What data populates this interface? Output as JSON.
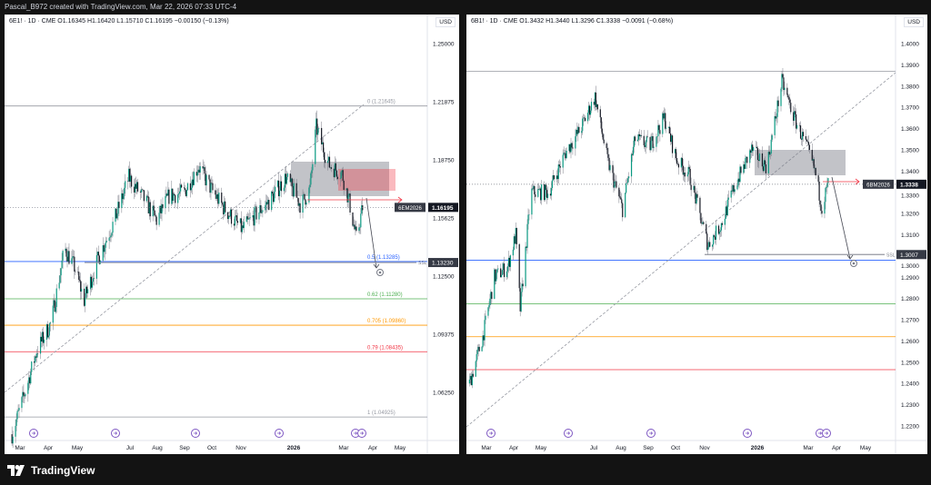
{
  "header": {
    "attribution": "Pascal_B972 created with TradingView.com, Mar 22, 2026 07:33 UTC-4"
  },
  "footer": {
    "brand": "TradingView",
    "logo_icon": "tradingview-logo-icon"
  },
  "colors": {
    "up": "#089981",
    "down": "#131722",
    "wick": "#787b86",
    "fib_05": "#2962ff",
    "fib_062": "#4caf50",
    "fib_0705": "#ff9800",
    "fib_079": "#f23645",
    "box_gray": "#787b86",
    "box_red": "#f23645",
    "event_icon": "#7e57c2"
  },
  "charts": [
    {
      "legend": "6E1! · 1D · CME  O1.16345  H1.16420  L1.15710  C1.16195  −0.00150 (−0.13%)",
      "currency": "USD",
      "price_ticks": [
        "1.25000",
        "1.21875",
        "1.18750",
        "1.15625",
        "1.12500",
        "1.09375",
        "1.06250"
      ],
      "time_ticks": [
        "Mar",
        "Apr",
        "May",
        "Jul",
        "Aug",
        "Sep",
        "Oct",
        "Nov",
        "2026",
        "Mar",
        "Apr",
        "May"
      ],
      "last_price": {
        "symbol": "6EM2026",
        "value": "1.16195"
      },
      "ssl": {
        "label": "SSL",
        "value": "1.13230"
      },
      "fib_levels": [
        {
          "label": "0 (1.21645)",
          "price": 1.21645,
          "color": "#9598a1"
        },
        {
          "label": "0.5 (1.13285)",
          "price": 1.13285,
          "color": "#2962ff"
        },
        {
          "label": "0.62 (1.11280)",
          "price": 1.1128,
          "color": "#4caf50"
        },
        {
          "label": "0.705 (1.09860)",
          "price": 1.0986,
          "color": "#ff9800"
        },
        {
          "label": "0.79 (1.08435)",
          "price": 1.08435,
          "color": "#f23645"
        },
        {
          "label": "1 (1.04925)",
          "price": 1.04925,
          "color": "#9598a1"
        }
      ],
      "chart_data": {
        "type": "candlestick",
        "approx_closes": [
          [
            "2025-02-20",
            1.04
          ],
          [
            "2025-03-05",
            1.06
          ],
          [
            "2025-03-20",
            1.085
          ],
          [
            "2025-04-05",
            1.1
          ],
          [
            "2025-04-20",
            1.14
          ],
          [
            "2025-05-01",
            1.13
          ],
          [
            "2025-05-12",
            1.112
          ],
          [
            "2025-05-28",
            1.135
          ],
          [
            "2025-06-15",
            1.155
          ],
          [
            "2025-07-01",
            1.178
          ],
          [
            "2025-07-20",
            1.165
          ],
          [
            "2025-08-01",
            1.155
          ],
          [
            "2025-08-15",
            1.168
          ],
          [
            "2025-09-01",
            1.17
          ],
          [
            "2025-09-17",
            1.184
          ],
          [
            "2025-10-01",
            1.172
          ],
          [
            "2025-10-15",
            1.162
          ],
          [
            "2025-11-05",
            1.15
          ],
          [
            "2025-11-20",
            1.158
          ],
          [
            "2025-12-05",
            1.165
          ],
          [
            "2025-12-24",
            1.178
          ],
          [
            "2026-01-10",
            1.163
          ],
          [
            "2026-01-20",
            1.172
          ],
          [
            "2026-01-27",
            1.205
          ],
          [
            "2026-02-10",
            1.185
          ],
          [
            "2026-02-25",
            1.18
          ],
          [
            "2026-03-05",
            1.165
          ],
          [
            "2026-03-13",
            1.145
          ],
          [
            "2026-03-20",
            1.162
          ]
        ]
      }
    },
    {
      "legend": "6B1! · 1D · CME  O1.3432  H1.3440  L1.3296  C1.3338  −0.0091 (−0.68%)",
      "currency": "USD",
      "price_ticks": [
        "1.4000",
        "1.3900",
        "1.3800",
        "1.3700",
        "1.3600",
        "1.3500",
        "1.3400",
        "1.3300",
        "1.3200",
        "1.3100",
        "1.3000",
        "1.2900",
        "1.2800",
        "1.2700",
        "1.2600",
        "1.2500",
        "1.2400",
        "1.2300",
        "1.2200"
      ],
      "time_ticks": [
        "Mar",
        "Apr",
        "May",
        "Jul",
        "Aug",
        "Sep",
        "Oct",
        "Nov",
        "2026",
        "Mar",
        "Apr",
        "May"
      ],
      "last_price": {
        "symbol": "6BM2026",
        "value": "1.3338"
      },
      "ssl": {
        "label": "SSL",
        "value": "1.3007"
      },
      "levels": [
        {
          "price": 1.387,
          "color": "#9598a1"
        },
        {
          "price": 1.298,
          "color": "#2962ff"
        },
        {
          "price": 1.2775,
          "color": "#4caf50"
        },
        {
          "price": 1.262,
          "color": "#ff9800"
        },
        {
          "price": 1.2465,
          "color": "#f23645"
        }
      ],
      "chart_data": {
        "type": "candlestick",
        "approx_closes": [
          [
            "2025-02-10",
            1.24
          ],
          [
            "2025-02-25",
            1.262
          ],
          [
            "2025-03-10",
            1.29
          ],
          [
            "2025-03-25",
            1.295
          ],
          [
            "2025-04-03",
            1.31
          ],
          [
            "2025-04-08",
            1.275
          ],
          [
            "2025-04-20",
            1.33
          ],
          [
            "2025-05-10",
            1.33
          ],
          [
            "2025-05-28",
            1.348
          ],
          [
            "2025-06-15",
            1.36
          ],
          [
            "2025-07-01",
            1.375
          ],
          [
            "2025-07-15",
            1.345
          ],
          [
            "2025-08-01",
            1.322
          ],
          [
            "2025-08-15",
            1.355
          ],
          [
            "2025-09-01",
            1.352
          ],
          [
            "2025-09-17",
            1.365
          ],
          [
            "2025-10-01",
            1.345
          ],
          [
            "2025-10-15",
            1.338
          ],
          [
            "2025-11-05",
            1.305
          ],
          [
            "2025-11-20",
            1.315
          ],
          [
            "2025-12-05",
            1.333
          ],
          [
            "2025-12-24",
            1.35
          ],
          [
            "2026-01-10",
            1.342
          ],
          [
            "2026-01-27",
            1.382
          ],
          [
            "2026-02-10",
            1.365
          ],
          [
            "2026-02-25",
            1.35
          ],
          [
            "2026-03-05",
            1.34
          ],
          [
            "2026-03-13",
            1.323
          ],
          [
            "2026-03-20",
            1.334
          ]
        ]
      }
    }
  ]
}
